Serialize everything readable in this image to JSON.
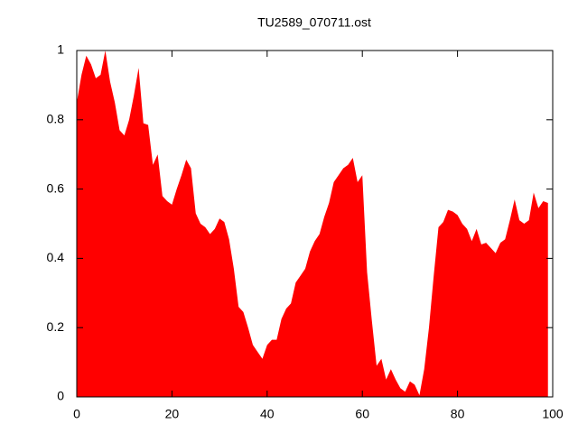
{
  "chart_data": {
    "type": "area",
    "title": "TU2589_070711.ost",
    "color": "#ff0000",
    "x": [
      0,
      1,
      2,
      3,
      4,
      5,
      6,
      7,
      8,
      9,
      10,
      11,
      12,
      13,
      14,
      15,
      16,
      17,
      18,
      19,
      20,
      21,
      22,
      23,
      24,
      25,
      26,
      27,
      28,
      29,
      30,
      31,
      32,
      33,
      34,
      35,
      36,
      37,
      38,
      39,
      40,
      41,
      42,
      43,
      44,
      45,
      46,
      47,
      48,
      49,
      50,
      51,
      52,
      53,
      54,
      55,
      56,
      57,
      58,
      59,
      60,
      61,
      62,
      63,
      64,
      65,
      66,
      67,
      68,
      69,
      70,
      71,
      72,
      73,
      74,
      75,
      76,
      77,
      78,
      79,
      80,
      81,
      82,
      83,
      84,
      85,
      86,
      87,
      88,
      89,
      90,
      91,
      92,
      93,
      94,
      95,
      96,
      97,
      98,
      99
    ],
    "values": [
      0.85,
      0.93,
      0.985,
      0.96,
      0.92,
      0.93,
      1.0,
      0.91,
      0.85,
      0.77,
      0.755,
      0.8,
      0.87,
      0.95,
      0.79,
      0.785,
      0.67,
      0.7,
      0.58,
      0.565,
      0.555,
      0.6,
      0.64,
      0.685,
      0.66,
      0.53,
      0.5,
      0.49,
      0.47,
      0.485,
      0.515,
      0.505,
      0.455,
      0.37,
      0.26,
      0.245,
      0.2,
      0.15,
      0.13,
      0.11,
      0.15,
      0.165,
      0.165,
      0.225,
      0.255,
      0.27,
      0.33,
      0.35,
      0.37,
      0.42,
      0.45,
      0.47,
      0.52,
      0.56,
      0.62,
      0.64,
      0.66,
      0.67,
      0.69,
      0.62,
      0.64,
      0.36,
      0.22,
      0.09,
      0.11,
      0.05,
      0.08,
      0.05,
      0.025,
      0.015,
      0.045,
      0.035,
      0.005,
      0.08,
      0.2,
      0.35,
      0.49,
      0.505,
      0.54,
      0.535,
      0.525,
      0.5,
      0.485,
      0.45,
      0.485,
      0.44,
      0.445,
      0.43,
      0.415,
      0.445,
      0.455,
      0.51,
      0.57,
      0.51,
      0.5,
      0.51,
      0.59,
      0.545,
      0.565,
      0.56
    ],
    "xlim": [
      0,
      100
    ],
    "ylim": [
      0,
      1
    ],
    "xticks": [
      0,
      20,
      40,
      60,
      80,
      100
    ],
    "yticks": [
      0,
      0.2,
      0.4,
      0.6,
      0.8,
      1
    ]
  }
}
